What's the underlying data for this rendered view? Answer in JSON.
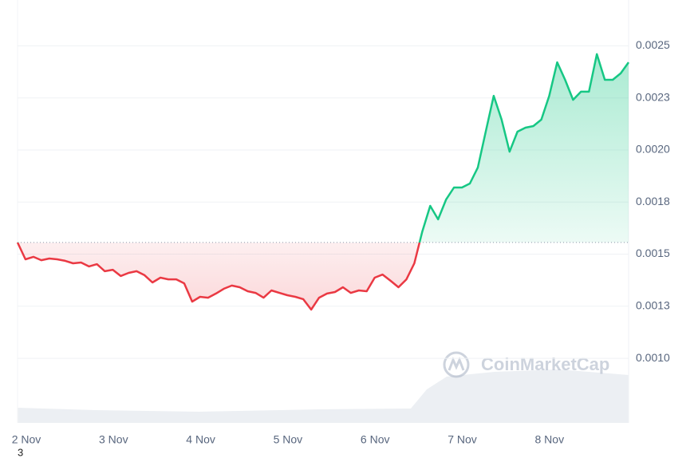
{
  "chart_data": {
    "type": "line",
    "xticks": [
      "2 Nov",
      "3 Nov",
      "4 Nov",
      "5 Nov",
      "6 Nov",
      "7 Nov",
      "8 Nov"
    ],
    "values": [
      0.001556,
      0.001475,
      0.001487,
      0.001471,
      0.001479,
      0.001475,
      0.001468,
      0.001456,
      0.00146,
      0.001441,
      0.001452,
      0.001418,
      0.001425,
      0.001395,
      0.00141,
      0.001418,
      0.001399,
      0.001364,
      0.001387,
      0.001379,
      0.001379,
      0.00136,
      0.001272,
      0.001295,
      0.001291,
      0.001311,
      0.001334,
      0.001349,
      0.001341,
      0.001322,
      0.001314,
      0.001291,
      0.001326,
      0.001314,
      0.001303,
      0.001295,
      0.001284,
      0.001234,
      0.001291,
      0.001311,
      0.001318,
      0.001341,
      0.001314,
      0.001326,
      0.001322,
      0.001387,
      0.001402,
      0.001372,
      0.001341,
      0.001379,
      0.001456,
      0.001609,
      0.001732,
      0.001667,
      0.001762,
      0.00182,
      0.00182,
      0.001839,
      0.001916,
      0.002088,
      0.00226,
      0.002146,
      0.001992,
      0.002088,
      0.002107,
      0.002115,
      0.002146,
      0.00226,
      0.002421,
      0.002337,
      0.002241,
      0.00228,
      0.00228,
      0.00246,
      0.002337,
      0.002337,
      0.002368,
      0.002421
    ],
    "baseline": 0.001556,
    "up_color": "#16c784",
    "down_color": "#ea3943",
    "ylim": [
      0.00069,
      0.00272
    ],
    "yticks": [
      0.0025,
      {
        "value": 0.00225,
        "label": "0.0023"
      },
      {
        "value": 0.002,
        "label": "0.0020"
      },
      {
        "value": 0.00175,
        "label": "0.0018"
      },
      0.0015,
      {
        "value": 0.00125,
        "label": "0.0013"
      },
      {
        "value": 0.001,
        "label": "0.0010"
      }
    ],
    "grid": true,
    "watermark": "CoinMarketCap",
    "footnote": "3"
  }
}
